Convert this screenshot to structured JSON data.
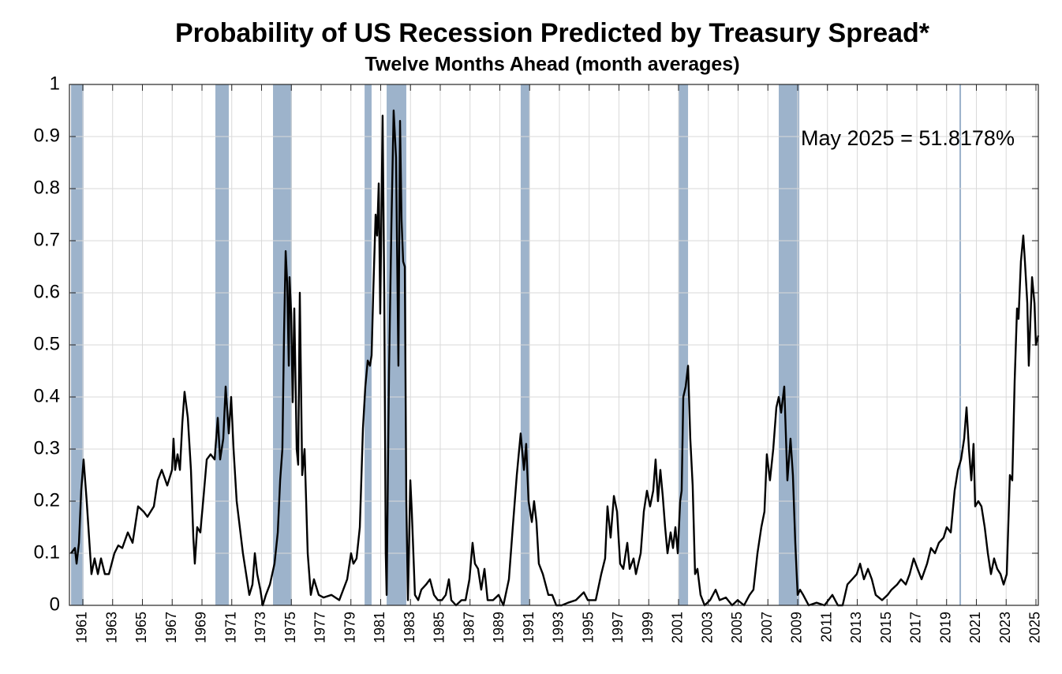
{
  "chart_data": {
    "type": "line",
    "title": "Probability of US Recession Predicted by Treasury Spread*",
    "subtitle": "Twelve Months Ahead (month averages)",
    "annotation": "May 2025 = 51.8178%",
    "color": "#000000",
    "recession_color": "#9db3cb",
    "grid": true,
    "xlim": [
      1960.1,
      2025.16
    ],
    "ylim": [
      0,
      1
    ],
    "yticks": [
      0,
      0.1,
      0.2,
      0.3,
      0.4,
      0.5,
      0.6,
      0.7,
      0.8,
      0.9,
      1
    ],
    "xticks": [
      1961,
      1963,
      1965,
      1967,
      1969,
      1971,
      1973,
      1975,
      1977,
      1979,
      1981,
      1983,
      1985,
      1987,
      1989,
      1991,
      1993,
      1995,
      1997,
      1999,
      2001,
      2003,
      2005,
      2007,
      2009,
      2011,
      2013,
      2015,
      2017,
      2019,
      2021,
      2023,
      2025
    ],
    "recessions": [
      [
        1960.21,
        1961.05
      ],
      [
        1969.9,
        1970.8
      ],
      [
        1973.77,
        1975.04
      ],
      [
        1979.92,
        1980.39
      ],
      [
        1981.4,
        1982.72
      ],
      [
        1990.4,
        1990.99
      ],
      [
        2001.0,
        2001.64
      ],
      [
        2007.73,
        2009.11
      ],
      [
        2019.86,
        2019.97
      ]
    ],
    "x": [
      1960.21,
      1960.47,
      1960.58,
      1960.74,
      1960.89,
      1961.05,
      1961.26,
      1961.42,
      1961.58,
      1961.79,
      1962.01,
      1962.22,
      1962.48,
      1962.75,
      1963.12,
      1963.38,
      1963.65,
      1964.02,
      1964.34,
      1964.71,
      1965.08,
      1965.34,
      1965.77,
      1966.03,
      1966.3,
      1966.67,
      1966.99,
      1967.09,
      1967.2,
      1967.36,
      1967.52,
      1967.68,
      1967.83,
      1968.05,
      1968.26,
      1968.42,
      1968.52,
      1968.68,
      1968.89,
      1969.11,
      1969.32,
      1969.58,
      1969.85,
      1970.06,
      1970.22,
      1970.43,
      1970.59,
      1970.8,
      1970.96,
      1971.12,
      1971.33,
      1971.54,
      1971.75,
      1972.02,
      1972.18,
      1972.39,
      1972.55,
      1972.71,
      1972.92,
      1973.08,
      1973.29,
      1973.56,
      1973.87,
      1974.09,
      1974.25,
      1974.4,
      1974.51,
      1974.62,
      1974.72,
      1974.83,
      1974.88,
      1974.99,
      1975.09,
      1975.2,
      1975.36,
      1975.46,
      1975.57,
      1975.73,
      1975.89,
      1976.1,
      1976.31,
      1976.52,
      1976.84,
      1977.16,
      1977.69,
      1978.22,
      1978.75,
      1979.01,
      1979.17,
      1979.38,
      1979.6,
      1979.81,
      1979.97,
      1980.13,
      1980.28,
      1980.39,
      1980.5,
      1980.66,
      1980.76,
      1980.87,
      1980.97,
      1981.13,
      1981.24,
      1981.34,
      1981.4,
      1981.56,
      1981.72,
      1981.87,
      1982.03,
      1982.19,
      1982.3,
      1982.4,
      1982.51,
      1982.62,
      1982.72,
      1982.83,
      1982.99,
      1983.09,
      1983.3,
      1983.52,
      1983.73,
      1984.05,
      1984.31,
      1984.58,
      1984.84,
      1985.11,
      1985.37,
      1985.58,
      1985.74,
      1986.06,
      1986.43,
      1986.7,
      1986.96,
      1987.17,
      1987.33,
      1987.54,
      1987.75,
      1987.97,
      1988.18,
      1988.55,
      1988.92,
      1989.24,
      1989.61,
      1989.87,
      1990.14,
      1990.4,
      1990.62,
      1990.77,
      1990.93,
      1991.15,
      1991.3,
      1991.46,
      1991.62,
      1991.89,
      1992.26,
      1992.52,
      1992.79,
      1993.16,
      1993.58,
      1994.11,
      1994.64,
      1994.91,
      1995.44,
      1995.81,
      1996.07,
      1996.23,
      1996.44,
      1996.66,
      1996.87,
      1997.08,
      1997.29,
      1997.56,
      1997.72,
      1997.98,
      1998.14,
      1998.46,
      1998.67,
      1998.88,
      1999.09,
      1999.3,
      1999.46,
      1999.62,
      1999.78,
      1999.94,
      2000.1,
      2000.26,
      2000.47,
      2000.63,
      2000.79,
      2000.95,
      2001.11,
      2001.21,
      2001.32,
      2001.48,
      2001.64,
      2001.79,
      2001.95,
      2002.11,
      2002.27,
      2002.48,
      2002.75,
      2003.12,
      2003.49,
      2003.76,
      2004.18,
      2004.6,
      2004.97,
      2005.4,
      2005.77,
      2006.03,
      2006.3,
      2006.56,
      2006.77,
      2006.93,
      2007.14,
      2007.36,
      2007.57,
      2007.73,
      2007.89,
      2008.1,
      2008.31,
      2008.52,
      2008.68,
      2008.84,
      2009.0,
      2009.16,
      2009.37,
      2009.74,
      2010.27,
      2010.8,
      2011.33,
      2011.7,
      2012.02,
      2012.34,
      2012.66,
      2012.97,
      2013.19,
      2013.45,
      2013.72,
      2013.98,
      2014.24,
      2014.67,
      2015.04,
      2015.3,
      2015.68,
      2015.94,
      2016.26,
      2016.52,
      2016.79,
      2017.05,
      2017.32,
      2017.69,
      2017.95,
      2018.22,
      2018.48,
      2018.8,
      2019.01,
      2019.28,
      2019.54,
      2019.76,
      2019.97,
      2020.18,
      2020.34,
      2020.5,
      2020.66,
      2020.81,
      2020.92,
      2021.13,
      2021.34,
      2021.56,
      2021.77,
      2021.98,
      2022.19,
      2022.4,
      2022.62,
      2022.83,
      2023.04,
      2023.25,
      2023.41,
      2023.57,
      2023.73,
      2023.83,
      2023.99,
      2024.15,
      2024.26,
      2024.42,
      2024.52,
      2024.63,
      2024.74,
      2024.9,
      2025.0,
      2025.16
    ],
    "values": [
      0.1,
      0.11,
      0.08,
      0.12,
      0.22,
      0.28,
      0.2,
      0.13,
      0.06,
      0.09,
      0.06,
      0.09,
      0.06,
      0.06,
      0.1,
      0.115,
      0.11,
      0.14,
      0.12,
      0.19,
      0.18,
      0.17,
      0.19,
      0.24,
      0.26,
      0.23,
      0.26,
      0.32,
      0.26,
      0.29,
      0.26,
      0.35,
      0.41,
      0.36,
      0.26,
      0.13,
      0.08,
      0.15,
      0.14,
      0.21,
      0.28,
      0.29,
      0.28,
      0.36,
      0.28,
      0.32,
      0.42,
      0.33,
      0.4,
      0.3,
      0.2,
      0.15,
      0.1,
      0.05,
      0.02,
      0.04,
      0.1,
      0.06,
      0.03,
      0.0,
      0.02,
      0.04,
      0.08,
      0.14,
      0.24,
      0.3,
      0.52,
      0.68,
      0.62,
      0.46,
      0.63,
      0.56,
      0.39,
      0.57,
      0.3,
      0.27,
      0.6,
      0.25,
      0.3,
      0.1,
      0.02,
      0.05,
      0.02,
      0.015,
      0.02,
      0.01,
      0.05,
      0.1,
      0.08,
      0.09,
      0.15,
      0.34,
      0.42,
      0.47,
      0.46,
      0.48,
      0.6,
      0.75,
      0.71,
      0.81,
      0.56,
      0.94,
      0.6,
      0.1,
      0.02,
      0.45,
      0.73,
      0.95,
      0.86,
      0.46,
      0.93,
      0.74,
      0.66,
      0.65,
      0.2,
      0.01,
      0.24,
      0.18,
      0.02,
      0.01,
      0.03,
      0.04,
      0.05,
      0.02,
      0.01,
      0.01,
      0.02,
      0.05,
      0.01,
      0.0,
      0.01,
      0.01,
      0.05,
      0.12,
      0.08,
      0.07,
      0.03,
      0.07,
      0.01,
      0.01,
      0.02,
      0.0,
      0.05,
      0.15,
      0.25,
      0.33,
      0.26,
      0.31,
      0.2,
      0.16,
      0.2,
      0.16,
      0.08,
      0.06,
      0.02,
      0.02,
      0.0,
      0.0,
      0.005,
      0.01,
      0.025,
      0.01,
      0.01,
      0.06,
      0.09,
      0.19,
      0.13,
      0.21,
      0.18,
      0.08,
      0.07,
      0.12,
      0.07,
      0.09,
      0.06,
      0.1,
      0.18,
      0.22,
      0.19,
      0.22,
      0.28,
      0.2,
      0.26,
      0.21,
      0.15,
      0.1,
      0.14,
      0.11,
      0.15,
      0.1,
      0.2,
      0.22,
      0.4,
      0.42,
      0.46,
      0.32,
      0.23,
      0.06,
      0.07,
      0.02,
      0.0,
      0.01,
      0.03,
      0.01,
      0.015,
      0.0,
      0.01,
      0.0,
      0.02,
      0.03,
      0.1,
      0.15,
      0.18,
      0.29,
      0.24,
      0.3,
      0.38,
      0.4,
      0.37,
      0.42,
      0.24,
      0.32,
      0.25,
      0.12,
      0.02,
      0.03,
      0.02,
      0.0,
      0.005,
      0.0,
      0.02,
      0.0,
      0.0,
      0.04,
      0.05,
      0.06,
      0.08,
      0.05,
      0.07,
      0.05,
      0.02,
      0.01,
      0.02,
      0.03,
      0.04,
      0.05,
      0.04,
      0.06,
      0.09,
      0.07,
      0.05,
      0.08,
      0.11,
      0.1,
      0.12,
      0.13,
      0.15,
      0.14,
      0.22,
      0.26,
      0.28,
      0.32,
      0.38,
      0.3,
      0.24,
      0.31,
      0.19,
      0.2,
      0.19,
      0.15,
      0.1,
      0.06,
      0.09,
      0.07,
      0.06,
      0.04,
      0.06,
      0.25,
      0.24,
      0.43,
      0.57,
      0.55,
      0.66,
      0.71,
      0.66,
      0.58,
      0.46,
      0.55,
      0.63,
      0.58,
      0.5,
      0.518
    ]
  }
}
